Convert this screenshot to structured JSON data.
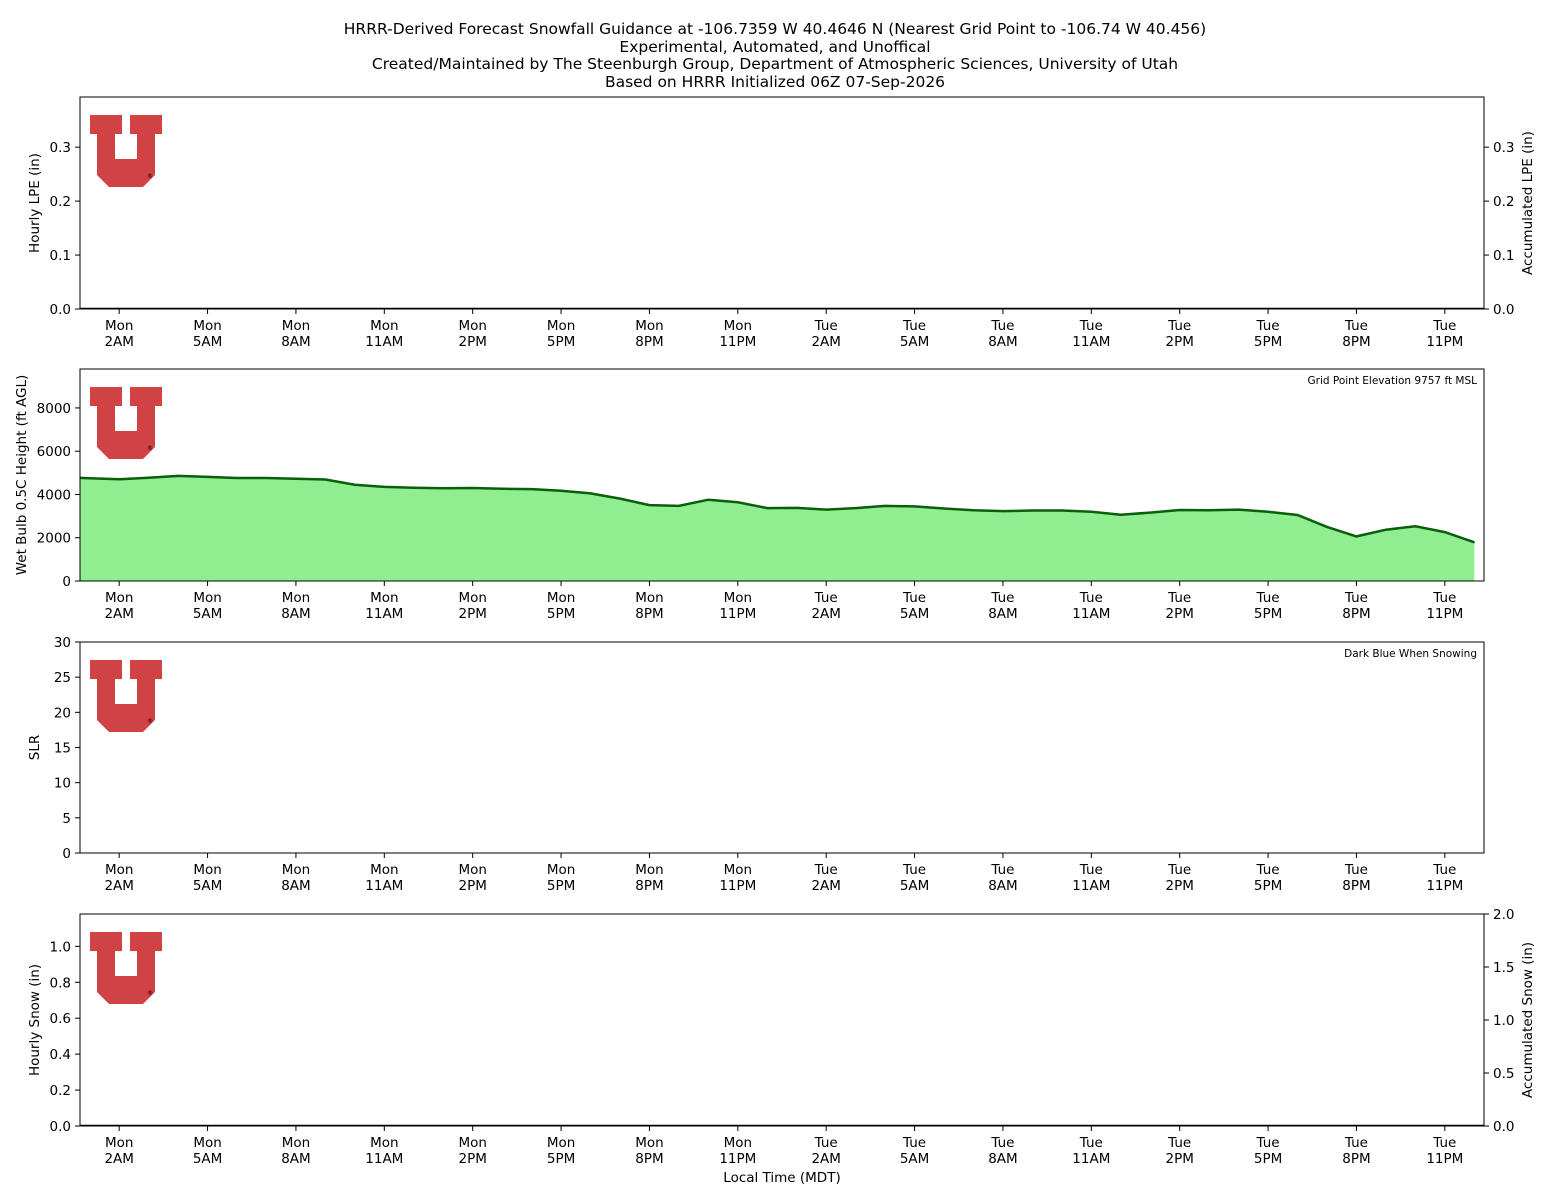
{
  "header": {
    "lines": [
      "HRRR-Derived Forecast Snowfall Guidance at -106.7359 W 40.4646 N (Nearest Grid Point to -106.74 W 40.456)",
      "Experimental, Automated, and Unoffical",
      "Created/Maintained by The Steenburgh Group, Department of Atmospheric Sciences, University of Utah",
      "Based on HRRR Initialized 06Z 07-Sep-2026"
    ]
  },
  "colors": {
    "logo": "#d04244",
    "wetbulb_fill": "#90ee90",
    "wetbulb_line": "#0b5e0b",
    "axis": "#000000"
  },
  "x_axis": {
    "label": "Local Time (MDT)",
    "tick_labels": [
      [
        "Mon",
        "2AM"
      ],
      [
        "Mon",
        "5AM"
      ],
      [
        "Mon",
        "8AM"
      ],
      [
        "Mon",
        "11AM"
      ],
      [
        "Mon",
        "2PM"
      ],
      [
        "Mon",
        "5PM"
      ],
      [
        "Mon",
        "8PM"
      ],
      [
        "Mon",
        "11PM"
      ],
      [
        "Tue",
        "2AM"
      ],
      [
        "Tue",
        "5AM"
      ],
      [
        "Tue",
        "8AM"
      ],
      [
        "Tue",
        "11AM"
      ],
      [
        "Tue",
        "2PM"
      ],
      [
        "Tue",
        "5PM"
      ],
      [
        "Tue",
        "8PM"
      ],
      [
        "Tue",
        "11PM"
      ]
    ]
  },
  "chart_data": [
    {
      "type": "bar",
      "id": "lpe",
      "ylabel": "Hourly LPE (in)",
      "ylim": [
        0,
        0.393
      ],
      "yticks": [
        "0.0",
        "0.1",
        "0.2",
        "0.3"
      ],
      "y2label": "Accumulated LPE (in)",
      "y2lim": [
        0,
        0.393
      ],
      "y2ticks": [
        "0.0",
        "0.1",
        "0.2",
        "0.3"
      ],
      "hours": [
        1,
        48
      ],
      "values": [],
      "accumulated": [],
      "annotation": ""
    },
    {
      "type": "area",
      "id": "wetbulb",
      "ylabel": "Wet Bulb 0.5C Height (ft AGL)",
      "ylim": [
        0,
        9800
      ],
      "yticks": [
        "0",
        "2000",
        "4000",
        "6000",
        "8000"
      ],
      "annotation": "Grid Point Elevation 9757 ft MSL",
      "hours": [
        1,
        48
      ],
      "values": [
        4750,
        4700,
        4770,
        4860,
        4810,
        4760,
        4760,
        4730,
        4690,
        4450,
        4350,
        4310,
        4290,
        4300,
        4260,
        4250,
        4170,
        4050,
        3810,
        3510,
        3470,
        3760,
        3640,
        3370,
        3380,
        3300,
        3370,
        3470,
        3450,
        3350,
        3270,
        3230,
        3260,
        3260,
        3200,
        3060,
        3160,
        3280,
        3270,
        3300,
        3200,
        3050,
        2500,
        2060,
        2370,
        2530,
        2260,
        1790
      ]
    },
    {
      "type": "scatter",
      "id": "slr",
      "ylabel": "SLR",
      "ylim": [
        0,
        30
      ],
      "yticks": [
        "0",
        "5",
        "10",
        "15",
        "20",
        "25",
        "30"
      ],
      "annotation": "Dark Blue When Snowing",
      "hours": [
        1,
        48
      ],
      "values": []
    },
    {
      "type": "bar",
      "id": "snow",
      "ylabel": "Hourly Snow (in)",
      "ylim": [
        0,
        1.18
      ],
      "yticks": [
        "0.0",
        "0.2",
        "0.4",
        "0.6",
        "0.8",
        "1.0"
      ],
      "y2label": "Accumulated Snow (in)",
      "y2lim": [
        0,
        2.0
      ],
      "y2ticks": [
        "0.0",
        "0.5",
        "1.0",
        "1.5",
        "2.0"
      ],
      "hours": [
        1,
        48
      ],
      "values": [],
      "accumulated": [],
      "annotation": ""
    }
  ]
}
